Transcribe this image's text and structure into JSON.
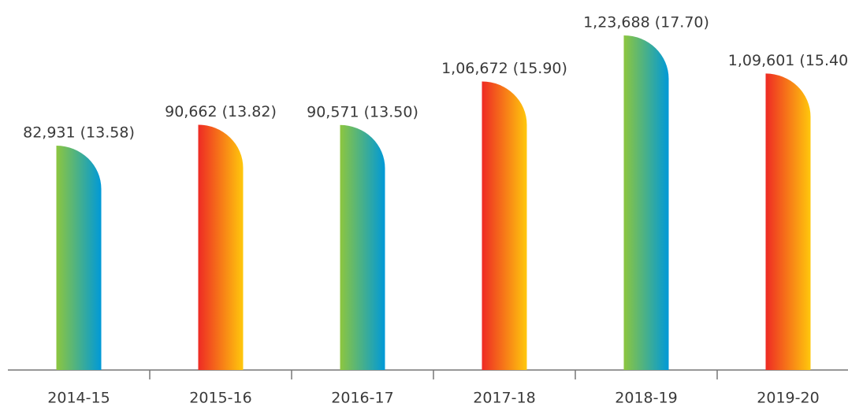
{
  "chart_data": {
    "type": "bar",
    "categories": [
      "2014-15",
      "2015-16",
      "2016-17",
      "2017-18",
      "2018-19",
      "2019-20"
    ],
    "values": [
      82931,
      90662,
      90571,
      106672,
      123688,
      109601
    ],
    "value_labels": [
      "82,931 (13.58)",
      "90,662 (13.82)",
      "90,571 (13.50)",
      "1,06,672 (15.90)",
      "1,23,688 (17.70)",
      "1,09,601 (15.40"
    ],
    "colors": [
      [
        "#8dc63f",
        "#0099d8"
      ],
      [
        "#ee2a24",
        "#ffc80c"
      ],
      [
        "#8dc63f",
        "#0099d8"
      ],
      [
        "#ee2a24",
        "#ffc80c"
      ],
      [
        "#8dc63f",
        "#0099d8"
      ],
      [
        "#ee2a24",
        "#ffc80c"
      ]
    ]
  }
}
